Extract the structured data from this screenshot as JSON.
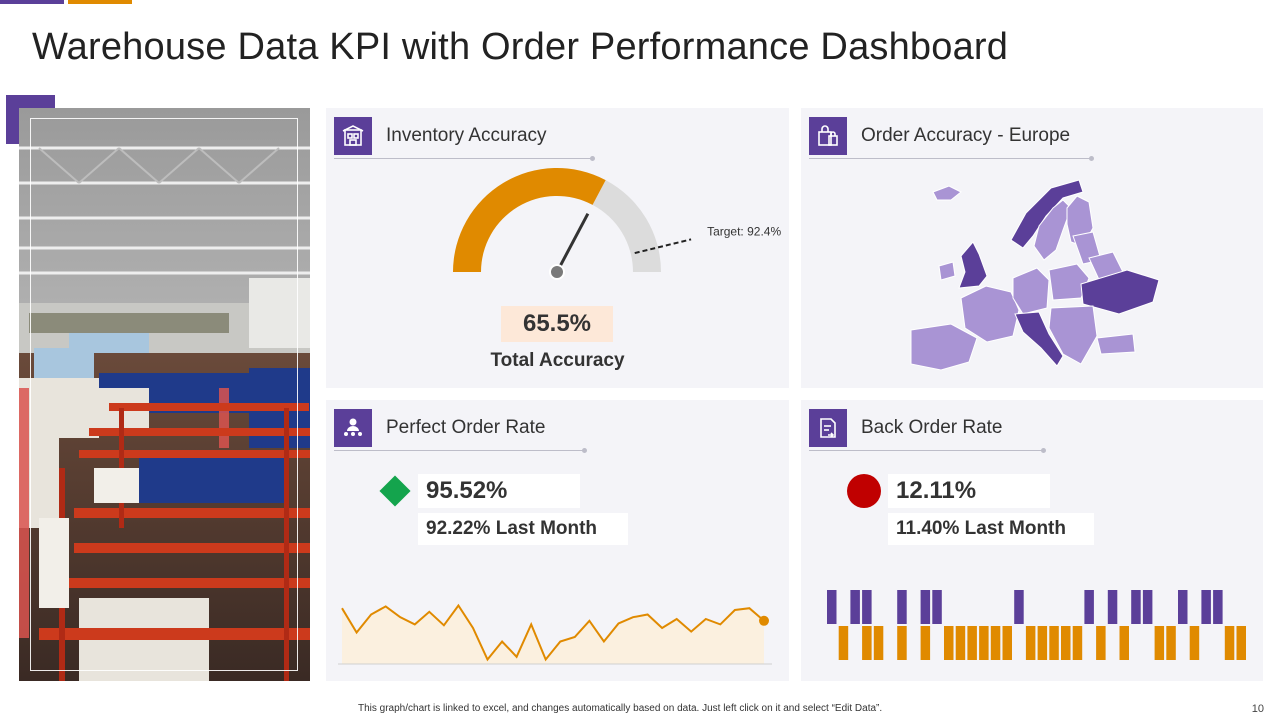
{
  "slide": {
    "title": "Warehouse Data KPI with Order Performance Dashboard",
    "page_number": "10",
    "footer_note": "This graph/chart is linked to excel, and changes automatically based on data. Just left click on it and select “Edit Data”."
  },
  "colors": {
    "purple": "#5b3f99",
    "orange": "#e08a00",
    "gauge_rest": "#dcdcdc",
    "panel_bg": "#f4f4f8",
    "green": "#14a44d",
    "red": "#c00000",
    "map_dark": "#5b3f99",
    "map_light": "#a994d4"
  },
  "inventory_accuracy": {
    "title": "Inventory Accuracy",
    "icon": "inventory-building-icon",
    "value": 65.5,
    "value_label": "65.5%",
    "target": 92.4,
    "target_label": "Target:  92.4%",
    "caption": "Total Accuracy"
  },
  "order_accuracy_europe": {
    "title": "Order Accuracy - Europe",
    "icon": "shopping-bag-icon"
  },
  "perfect_order_rate": {
    "title": "Perfect Order Rate",
    "icon": "team-icon",
    "value": "95.52%",
    "last_month": "92.22% Last Month",
    "indicator": "green-diamond"
  },
  "back_order_rate": {
    "title": "Back Order Rate",
    "icon": "document-return-icon",
    "value": "12.11%",
    "last_month": "11.40% Last Month",
    "indicator": "red-circle"
  },
  "chart_data": [
    {
      "type": "area",
      "values": [
        62,
        35,
        55,
        64,
        52,
        44,
        58,
        43,
        65,
        40,
        5,
        25,
        8,
        44,
        5,
        25,
        30,
        48,
        25,
        45,
        52,
        55,
        40,
        50,
        36,
        50,
        44,
        60,
        62,
        48
      ],
      "ylim": [
        0,
        80
      ],
      "grid": false
    },
    {
      "type": "bar",
      "series": [
        {
          "name": "",
          "values": [
            1,
            0,
            1,
            1,
            0,
            0,
            1,
            0,
            1,
            1,
            0,
            0,
            0,
            0,
            0,
            0,
            1,
            0,
            0,
            0,
            0,
            0,
            1,
            0,
            1,
            0,
            1,
            1,
            0,
            0,
            1,
            0,
            1,
            1,
            0,
            0
          ]
        },
        {
          "name": "",
          "values": [
            0,
            1,
            0,
            1,
            1,
            0,
            1,
            0,
            1,
            0,
            1,
            1,
            1,
            1,
            1,
            1,
            0,
            1,
            1,
            1,
            1,
            1,
            0,
            1,
            0,
            1,
            0,
            0,
            1,
            1,
            0,
            1,
            0,
            0,
            1,
            1
          ]
        }
      ]
    }
  ]
}
